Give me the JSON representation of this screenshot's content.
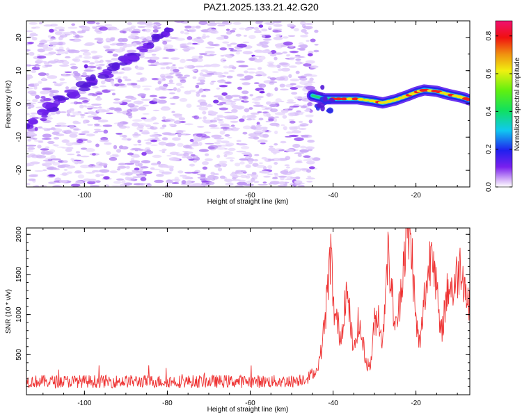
{
  "title": "PAZ1.2025.133.21.42.G20",
  "colors": {
    "snr_line": "#ee3333",
    "spectro_low": "#c9a4f5",
    "spectro_mid": "#7b1ff2",
    "spectro_strong": "#3a1ad4"
  },
  "chart_data": [
    {
      "type": "heatmap",
      "title": "PAZ1.2025.133.21.42.G20",
      "xlabel": "Height of straight line (km)",
      "ylabel": "Frequency (Hz)",
      "xlim": [
        -114,
        -7
      ],
      "ylim": [
        -25,
        25
      ],
      "xticks": [
        -100,
        -80,
        -60,
        -40,
        -20
      ],
      "yticks": [
        -20,
        -10,
        0,
        10,
        20
      ],
      "colorbar": {
        "label": "Normalized spectral amplitude",
        "range": [
          0,
          0.88
        ],
        "ticks": [
          0.0,
          0.2,
          0.4,
          0.6,
          0.8
        ],
        "colormap": "white-purple-blue-cyan-green-yellow-red-magenta"
      },
      "ridge": {
        "description_values": "dominant frequency ridge (Hz) vs height (km)",
        "x": [
          -45,
          -42,
          -38,
          -34,
          -30,
          -28,
          -25,
          -22,
          -20,
          -18,
          -15,
          -12,
          -9,
          -7
        ],
        "y": [
          2.5,
          1.5,
          1.5,
          1.5,
          0.8,
          0.3,
          1.2,
          2.5,
          3.5,
          4.2,
          3.8,
          2.8,
          2.0,
          1.2
        ],
        "amplitude": [
          0.15,
          0.35,
          0.55,
          0.6,
          0.5,
          0.55,
          0.6,
          0.65,
          0.6,
          0.65,
          0.6,
          0.6,
          0.55,
          0.5
        ]
      },
      "noise_region": {
        "x_range": [
          -114,
          -44
        ],
        "amplitude_max": 0.1
      }
    },
    {
      "type": "line",
      "xlabel": "Height of straight line (km)",
      "ylabel": "SNR (10 * v/v)",
      "xlim": [
        -114,
        -7
      ],
      "ylim": [
        0,
        2080
      ],
      "xticks": [
        -100,
        -80,
        -60,
        -40,
        -20
      ],
      "yticks": [
        500,
        1000,
        1500,
        2000
      ],
      "series": [
        {
          "x": [
            -114,
            -110,
            -105,
            -100,
            -95,
            -90,
            -85,
            -80,
            -75,
            -70,
            -65,
            -60,
            -55,
            -50,
            -46,
            -44,
            -43,
            -42,
            -41,
            -40.5,
            -40,
            -39,
            -38,
            -37,
            -36,
            -35,
            -34,
            -33,
            -32,
            -31,
            -30,
            -29,
            -28,
            -27,
            -26,
            -25,
            -24,
            -23,
            -22,
            -21,
            -20,
            -19,
            -18,
            -17,
            -16,
            -15,
            -14,
            -13,
            -12,
            -11,
            -10,
            -9,
            -8,
            -7
          ],
          "y": [
            150,
            150,
            150,
            150,
            150,
            150,
            150,
            150,
            150,
            150,
            150,
            150,
            150,
            150,
            200,
            300,
            500,
            900,
            1500,
            1850,
            1100,
            900,
            700,
            1300,
            1000,
            500,
            900,
            700,
            400,
            350,
            900,
            1000,
            600,
            1800,
            1400,
            800,
            1100,
            1700,
            2050,
            1800,
            900,
            600,
            1200,
            1500,
            2000,
            1300,
            700,
            1100,
            1400,
            1300,
            1500,
            1650,
            1300,
            1050
          ]
        }
      ]
    }
  ]
}
